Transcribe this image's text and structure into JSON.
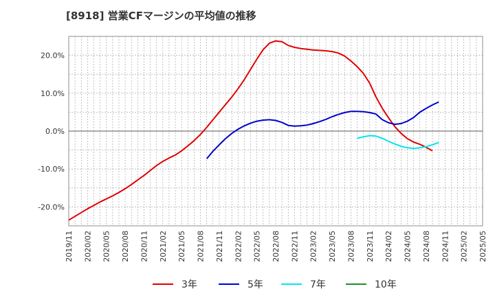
{
  "chart_data": {
    "type": "line",
    "title": "[8918]  営業CFマージンの平均値の推移",
    "xlabel": "",
    "ylabel": "",
    "ylim": [
      -25,
      25
    ],
    "y_ticks": [
      {
        "value": 20,
        "label": "20.0%"
      },
      {
        "value": 10,
        "label": "10.0%"
      },
      {
        "value": 0,
        "label": "0.0%"
      },
      {
        "value": -10,
        "label": "-10.0%"
      },
      {
        "value": -20,
        "label": "-20.0%"
      }
    ],
    "x_ticks": [
      "2019/11",
      "2020/02",
      "2020/05",
      "2020/08",
      "2020/11",
      "2021/02",
      "2021/05",
      "2021/08",
      "2021/11",
      "2022/02",
      "2022/05",
      "2022/08",
      "2022/11",
      "2023/02",
      "2023/05",
      "2023/08",
      "2023/11",
      "2024/02",
      "2024/05",
      "2024/08",
      "2024/11",
      "2025/02",
      "2025/05"
    ],
    "grid": true,
    "legend_position": "bottom",
    "series": [
      {
        "name": "3年",
        "color": "#e00000",
        "points": [
          [
            "2019/11",
            -23.5
          ],
          [
            "2019/12",
            -22.5
          ],
          [
            "2020/01",
            -21.5
          ],
          [
            "2020/02",
            -20.5
          ],
          [
            "2020/03",
            -19.6
          ],
          [
            "2020/04",
            -18.7
          ],
          [
            "2020/05",
            -17.9
          ],
          [
            "2020/06",
            -17.1
          ],
          [
            "2020/07",
            -16.2
          ],
          [
            "2020/08",
            -15.2
          ],
          [
            "2020/09",
            -14.1
          ],
          [
            "2020/10",
            -12.9
          ],
          [
            "2020/11",
            -11.7
          ],
          [
            "2020/12",
            -10.4
          ],
          [
            "2021/01",
            -9.1
          ],
          [
            "2021/02",
            -8.0
          ],
          [
            "2021/03",
            -7.1
          ],
          [
            "2021/04",
            -6.3
          ],
          [
            "2021/05",
            -5.2
          ],
          [
            "2021/06",
            -3.9
          ],
          [
            "2021/07",
            -2.5
          ],
          [
            "2021/08",
            -0.9
          ],
          [
            "2021/09",
            1.0
          ],
          [
            "2021/10",
            3.0
          ],
          [
            "2021/11",
            5.0
          ],
          [
            "2021/12",
            7.0
          ],
          [
            "2022/01",
            9.0
          ],
          [
            "2022/02",
            11.2
          ],
          [
            "2022/03",
            13.6
          ],
          [
            "2022/04",
            16.3
          ],
          [
            "2022/05",
            19.0
          ],
          [
            "2022/06",
            21.5
          ],
          [
            "2022/07",
            23.2
          ],
          [
            "2022/08",
            23.8
          ],
          [
            "2022/09",
            23.6
          ],
          [
            "2022/10",
            22.6
          ],
          [
            "2022/11",
            22.1
          ],
          [
            "2022/12",
            21.8
          ],
          [
            "2023/01",
            21.6
          ],
          [
            "2023/02",
            21.4
          ],
          [
            "2023/03",
            21.3
          ],
          [
            "2023/04",
            21.2
          ],
          [
            "2023/05",
            21.0
          ],
          [
            "2023/06",
            20.6
          ],
          [
            "2023/07",
            19.8
          ],
          [
            "2023/08",
            18.5
          ],
          [
            "2023/09",
            17.0
          ],
          [
            "2023/10",
            15.2
          ],
          [
            "2023/11",
            12.6
          ],
          [
            "2023/12",
            9.0
          ],
          [
            "2024/01",
            6.0
          ],
          [
            "2024/02",
            3.5
          ],
          [
            "2024/03",
            1.2
          ],
          [
            "2024/04",
            -0.6
          ],
          [
            "2024/05",
            -2.0
          ],
          [
            "2024/06",
            -2.9
          ],
          [
            "2024/07",
            -3.5
          ],
          [
            "2024/08",
            -4.3
          ],
          [
            "2024/09",
            -5.2
          ]
        ]
      },
      {
        "name": "5年",
        "color": "#0000cc",
        "points": [
          [
            "2021/09",
            -7.3
          ],
          [
            "2021/10",
            -5.3
          ],
          [
            "2021/11",
            -3.6
          ],
          [
            "2021/12",
            -2.0
          ],
          [
            "2022/01",
            -0.6
          ],
          [
            "2022/02",
            0.5
          ],
          [
            "2022/03",
            1.4
          ],
          [
            "2022/04",
            2.1
          ],
          [
            "2022/05",
            2.6
          ],
          [
            "2022/06",
            2.9
          ],
          [
            "2022/07",
            3.0
          ],
          [
            "2022/08",
            2.8
          ],
          [
            "2022/09",
            2.3
          ],
          [
            "2022/10",
            1.5
          ],
          [
            "2022/11",
            1.3
          ],
          [
            "2022/12",
            1.4
          ],
          [
            "2023/01",
            1.6
          ],
          [
            "2023/02",
            2.0
          ],
          [
            "2023/03",
            2.5
          ],
          [
            "2023/04",
            3.1
          ],
          [
            "2023/05",
            3.8
          ],
          [
            "2023/06",
            4.4
          ],
          [
            "2023/07",
            4.9
          ],
          [
            "2023/08",
            5.2
          ],
          [
            "2023/09",
            5.2
          ],
          [
            "2023/10",
            5.1
          ],
          [
            "2023/11",
            4.9
          ],
          [
            "2023/12",
            4.5
          ],
          [
            "2024/01",
            3.0
          ],
          [
            "2024/02",
            2.2
          ],
          [
            "2024/03",
            1.8
          ],
          [
            "2024/04",
            2.0
          ],
          [
            "2024/05",
            2.6
          ],
          [
            "2024/06",
            3.6
          ],
          [
            "2024/07",
            5.0
          ],
          [
            "2024/08",
            6.0
          ],
          [
            "2024/09",
            6.9
          ],
          [
            "2024/10",
            7.7
          ]
        ]
      },
      {
        "name": "7年",
        "color": "#00e5ee",
        "points": [
          [
            "2023/09",
            -1.9
          ],
          [
            "2023/10",
            -1.5
          ],
          [
            "2023/11",
            -1.2
          ],
          [
            "2023/12",
            -1.3
          ],
          [
            "2024/01",
            -1.9
          ],
          [
            "2024/02",
            -2.7
          ],
          [
            "2024/03",
            -3.4
          ],
          [
            "2024/04",
            -4.0
          ],
          [
            "2024/05",
            -4.4
          ],
          [
            "2024/06",
            -4.6
          ],
          [
            "2024/07",
            -4.4
          ],
          [
            "2024/08",
            -4.1
          ],
          [
            "2024/09",
            -3.6
          ],
          [
            "2024/10",
            -3.0
          ]
        ]
      },
      {
        "name": "10年",
        "color": "#228b22",
        "points": []
      }
    ]
  }
}
